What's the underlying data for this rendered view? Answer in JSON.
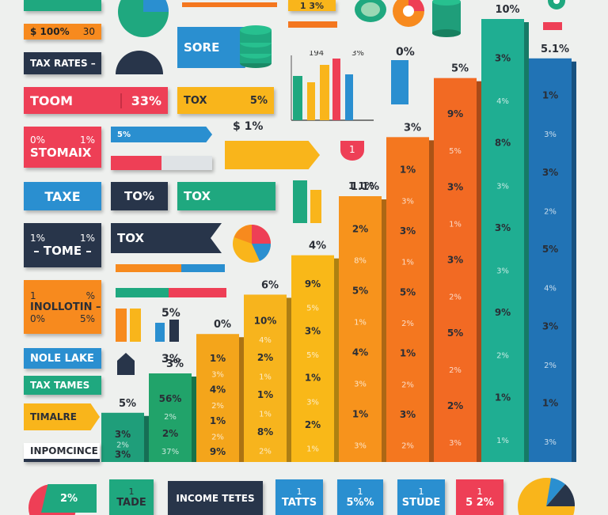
{
  "chart_data": {
    "type": "bar",
    "title": "",
    "bars": [
      {
        "color": "#1f9e7a",
        "top_label": "5%",
        "cells": [
          "3%",
          "2%",
          "3%"
        ],
        "value": 5
      },
      {
        "color": "#21a36a",
        "top_label": "3%",
        "cells": [
          "56%",
          "2%",
          "2%",
          "37%"
        ],
        "value": 9
      },
      {
        "color": "#f4a51b",
        "top_label": "0%",
        "cells": [
          "1%",
          "3%",
          "4%",
          "2%",
          "1%",
          "2%",
          "9%"
        ],
        "value": 13
      },
      {
        "color": "#f7b41d",
        "top_label": "6%",
        "cells": [
          "10%",
          "4%",
          "2%",
          "1%",
          "1%",
          "1%",
          "8%",
          "2%"
        ],
        "value": 17
      },
      {
        "color": "#f9b818",
        "top_label": "4%",
        "cells": [
          "9%",
          "5%",
          "3%",
          "5%",
          "1%",
          "3%",
          "2%",
          "1%"
        ],
        "value": 21
      },
      {
        "color": "#f7931c",
        "top_label": "1.1%",
        "cells": [
          "2%",
          "8%",
          "5%",
          "1%",
          "4%",
          "3%",
          "1%",
          "3%"
        ],
        "value": 27
      },
      {
        "color": "#f4771f",
        "top_label": "3%",
        "cells": [
          "1%",
          "3%",
          "3%",
          "1%",
          "5%",
          "2%",
          "1%",
          "2%",
          "3%",
          "2%"
        ],
        "value": 33
      },
      {
        "color": "#f26a23",
        "top_label": "5%",
        "cells": [
          "9%",
          "5%",
          "3%",
          "1%",
          "3%",
          "2%",
          "5%",
          "2%",
          "2%",
          "3%"
        ],
        "value": 39
      },
      {
        "color": "#1fae92",
        "top_label": "10%",
        "cells": [
          "3%",
          "4%",
          "8%",
          "3%",
          "3%",
          "3%",
          "9%",
          "2%",
          "1%",
          "1%"
        ],
        "value": 45
      },
      {
        "color": "#2173b5",
        "top_label": "5.1%",
        "cells": [
          "1%",
          "3%",
          "3%",
          "2%",
          "5%",
          "4%",
          "3%",
          "2%",
          "1%",
          "3%"
        ],
        "value": 41
      }
    ]
  },
  "labels": {
    "l1": {
      "left": "$",
      "mid": "100%",
      "right": "30"
    },
    "l2": {
      "text": "TAX RATES",
      "suffix": "–"
    },
    "l3": {
      "left": "TOOM",
      "right": "33%"
    },
    "l4": {
      "top_left": "0%",
      "top_right": "1%",
      "main": "STOMAIX"
    },
    "l5": {
      "text": "TAXE"
    },
    "l6": {
      "top_left": "1%",
      "top_right": "1%",
      "main": "– TOME –"
    },
    "l7": {
      "top": "1",
      "top_right": "%",
      "main": "INOLLOTIN –",
      "bottom_left": "0%",
      "bottom_right": "5%"
    },
    "l8": {
      "text": "NOLE LAKE"
    },
    "l9": {
      "text": "TAX TAMES"
    },
    "l10": {
      "text": "TIMALRE"
    },
    "l11": {
      "text": "INPOMCINCE"
    },
    "top_badge": {
      "text": "1 3%"
    },
    "m1": {
      "text": "SORE"
    },
    "m2": {
      "left": "TOX",
      "right": "5%"
    },
    "m3": {
      "text": "5%"
    },
    "m4": {
      "text": "TO%"
    },
    "m5": {
      "text": "TOX"
    },
    "m6": {
      "text": "TOX"
    },
    "m7": {
      "text": "$ 1%"
    },
    "m8": {
      "text": "0%"
    },
    "m9": {
      "text": "5%"
    },
    "m10": {
      "text": "1 1%"
    },
    "m11": {
      "text": "3%"
    },
    "b1": {
      "text": "2%"
    },
    "b2": {
      "top": "1",
      "main": "TADE"
    },
    "b3": {
      "text": "INCOME TETES"
    },
    "b4": {
      "top": "1",
      "main": "TATTS"
    },
    "b5": {
      "top": "1",
      "main": "5%%"
    },
    "b6": {
      "top": "1",
      "main": "STUDE"
    },
    "b7": {
      "top": "1",
      "main": "5 2%"
    }
  },
  "colors": {
    "red": "#ee3f56",
    "orange": "#f78a1e",
    "yellow": "#f9b51b",
    "green": "#1fa87f",
    "blue": "#2a8fd0",
    "navy": "#28354a"
  }
}
